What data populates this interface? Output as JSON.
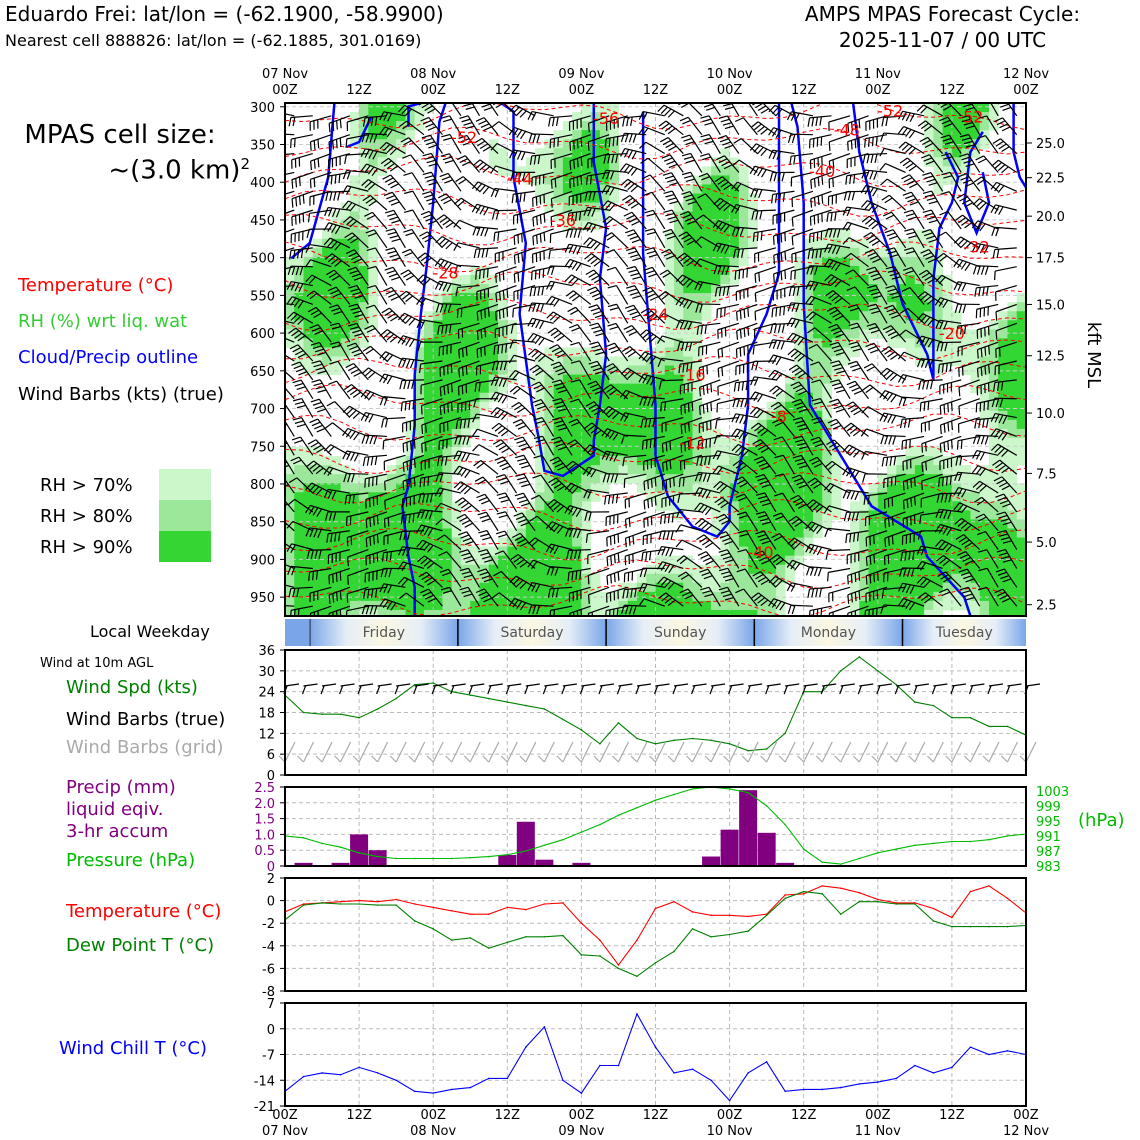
{
  "header": {
    "station_title": "Eduardo Frei: lat/lon = (-62.1900, -58.9900)",
    "nearest_cell": "Nearest cell 888826: lat/lon = (-62.1885, 301.0169)",
    "cycle_title": "AMPS MPAS Forecast Cycle:",
    "cycle_time": "2025-11-07 / 00 UTC"
  },
  "left_panel": {
    "cell_size_label": "MPAS cell size:",
    "cell_size_value": "~(3.0 km)",
    "cell_size_exp": "2",
    "legend_temperature": "Temperature (°C)",
    "legend_rh": "RH (%) wrt liq. wat",
    "legend_cloud": "Cloud/Precip outline",
    "legend_wind": "Wind Barbs (kts) (true)",
    "rh_levels": [
      {
        "label": "RH > 70%",
        "color": "#cbf7cb"
      },
      {
        "label": "RH > 80%",
        "color": "#9be89b"
      },
      {
        "label": "RH > 90%",
        "color": "#33d633"
      }
    ],
    "local_weekday": "Local Weekday",
    "wind10m_label": "Wind at 10m AGL",
    "wind_spd_label": "Wind Spd (kts)",
    "wind_barbs_true": "Wind Barbs (true)",
    "wind_barbs_grid": "Wind Barbs (grid)",
    "precip_label_1": "Precip (mm)",
    "precip_label_2": "liquid eqiv.",
    "precip_label_3": "3-hr accum",
    "pressure_label": "Pressure (hPa)",
    "temp_label": "Temperature (°C)",
    "dewpoint_label": "Dew Point T (°C)",
    "windchill_label": "Wind Chill T (°C)"
  },
  "colors": {
    "temperature": "#ff0000",
    "rh_text": "#33cc33",
    "cloud": "#0000ff",
    "wind_spd": "#008000",
    "precip": "#800080",
    "pressure": "#00bb00",
    "dewpoint": "#008000",
    "windchill": "#0000ff",
    "grid_barb": "#aaaaaa"
  },
  "time_axis": {
    "top_date_labels": [
      "07 Nov",
      "08 Nov",
      "09 Nov",
      "10 Nov",
      "11 Nov",
      "12 Nov"
    ],
    "hour_labels": [
      "00Z",
      "12Z",
      "00Z",
      "12Z",
      "00Z",
      "12Z",
      "00Z",
      "12Z",
      "00Z",
      "12Z",
      "00Z"
    ],
    "bottom_date_labels": [
      "07 Nov",
      "08 Nov",
      "09 Nov",
      "10 Nov",
      "11 Nov",
      "12 Nov"
    ]
  },
  "weekdays": [
    "Friday",
    "Saturday",
    "Sunday",
    "Monday",
    "Tuesday"
  ],
  "chart_data": [
    {
      "type": "heatmap",
      "title": "Time-height cross section",
      "ylabel_right": "kft MSL",
      "pressure_ticks": [
        300,
        350,
        400,
        450,
        500,
        550,
        600,
        650,
        700,
        750,
        800,
        850,
        900,
        950
      ],
      "height_ticks": [
        "25.0",
        "22.5",
        "20.0",
        "17.5",
        "15.0",
        "12.5",
        "10.0",
        "7.5",
        "5.0",
        "2.5"
      ],
      "ylim": [
        975,
        295
      ],
      "xlim_hours": [
        0,
        120
      ],
      "temperature_labels": [
        {
          "text": "-56",
          "hour": 52,
          "p": 315
        },
        {
          "text": "-52",
          "hour": 29,
          "p": 340
        },
        {
          "text": "-52",
          "hour": 98,
          "p": 305
        },
        {
          "text": "-52",
          "hour": 111,
          "p": 313
        },
        {
          "text": "-48",
          "hour": 91,
          "p": 330
        },
        {
          "text": "-44",
          "hour": 38,
          "p": 395
        },
        {
          "text": "-40",
          "hour": 87,
          "p": 385
        },
        {
          "text": "-36",
          "hour": 45,
          "p": 450
        },
        {
          "text": "-32",
          "hour": 112,
          "p": 485
        },
        {
          "text": "-28",
          "hour": 26,
          "p": 520
        },
        {
          "text": "-24",
          "hour": 60,
          "p": 575
        },
        {
          "text": "-20",
          "hour": 108,
          "p": 600
        },
        {
          "text": "-16",
          "hour": 66,
          "p": 655
        },
        {
          "text": "-8",
          "hour": 80,
          "p": 710
        },
        {
          "text": "-12",
          "hour": 66,
          "p": 745
        },
        {
          "text": "-40",
          "hour": 77,
          "p": 890
        }
      ]
    },
    {
      "type": "line",
      "title": "Wind at 10m AGL",
      "ylabel": "Wind Spd (kts)",
      "yticks": [
        0,
        6,
        12,
        18,
        24,
        30,
        36
      ],
      "ylim": [
        0,
        36
      ],
      "x_hours": [
        0,
        3,
        6,
        9,
        12,
        15,
        18,
        21,
        24,
        27,
        30,
        33,
        36,
        39,
        42,
        45,
        48,
        51,
        54,
        57,
        60,
        63,
        66,
        69,
        72,
        75,
        78,
        81,
        84,
        87,
        90,
        93,
        96,
        99,
        102,
        105,
        108,
        111,
        114,
        117,
        120
      ],
      "series": [
        {
          "name": "Wind Spd (kts)",
          "values": [
            23,
            18,
            17.5,
            17.5,
            16.5,
            19,
            22,
            26,
            26.5,
            24,
            23,
            22,
            21,
            20,
            19,
            16,
            13,
            9,
            15,
            10.5,
            9,
            10,
            10.5,
            10,
            9,
            7,
            7.5,
            12,
            24,
            24,
            30,
            34,
            30,
            26,
            21,
            20,
            16.5,
            16.5,
            14,
            14,
            11.5
          ]
        }
      ]
    },
    {
      "type": "bar",
      "title": "Precip (mm) and Pressure (hPa)",
      "ylabel": "Precip (mm)",
      "yticks": [
        0,
        0.5,
        1.0,
        1.5,
        2.0,
        2.5
      ],
      "ylim": [
        0,
        2.5
      ],
      "x_hours": [
        3,
        9,
        12,
        15,
        36,
        39,
        42,
        48,
        69,
        72,
        75,
        78,
        81
      ],
      "values": [
        0.1,
        0.1,
        1.0,
        0.5,
        0.35,
        1.4,
        0.2,
        0.1,
        0.3,
        1.15,
        2.4,
        1.05,
        0.1
      ],
      "y2label": "(hPa)",
      "y2ticks": [
        983,
        987,
        991,
        995,
        999,
        1003
      ],
      "y2lim": [
        983,
        1004
      ],
      "pressure_x_hours": [
        0,
        3,
        6,
        9,
        12,
        15,
        18,
        21,
        24,
        27,
        30,
        33,
        36,
        39,
        42,
        45,
        48,
        51,
        54,
        57,
        60,
        63,
        66,
        69,
        72,
        75,
        78,
        81,
        84,
        87,
        90,
        93,
        96,
        99,
        102,
        105,
        108,
        111,
        114,
        117,
        120
      ],
      "pressure_values": [
        991,
        990.5,
        989,
        988,
        986.5,
        985.5,
        985,
        985,
        985,
        985,
        985.2,
        985.5,
        986,
        987,
        988.5,
        990,
        992,
        994,
        996.5,
        998.5,
        1000.5,
        1002,
        1003.5,
        1004,
        1003.5,
        1002.5,
        999,
        994,
        987.5,
        984,
        983.5,
        985,
        986.5,
        987.5,
        988.5,
        989,
        989.5,
        989.5,
        990,
        991,
        991.5
      ]
    },
    {
      "type": "line",
      "title": "Temperature and Dew Point",
      "ylabel": "Temperature (°C)",
      "yticks": [
        -8,
        -6,
        -4,
        -2,
        0,
        2
      ],
      "ylim": [
        -8,
        2
      ],
      "x_hours": [
        0,
        3,
        6,
        9,
        12,
        15,
        18,
        21,
        24,
        27,
        30,
        33,
        36,
        39,
        42,
        45,
        48,
        51,
        54,
        57,
        60,
        63,
        66,
        69,
        72,
        75,
        78,
        81,
        84,
        87,
        90,
        93,
        96,
        99,
        102,
        105,
        108,
        111,
        114,
        117,
        120
      ],
      "series": [
        {
          "name": "Temperature (°C)",
          "values": [
            -1,
            -0.3,
            -0.2,
            -0.1,
            0,
            -0.1,
            0.1,
            -0.3,
            -0.6,
            -0.9,
            -1.2,
            -1.2,
            -0.6,
            -0.8,
            -0.3,
            -0.2,
            -2,
            -3.5,
            -5.7,
            -3.5,
            -0.7,
            -0.1,
            -1,
            -1.3,
            -1.3,
            -1.4,
            -1.2,
            0.5,
            0.6,
            1.3,
            1.1,
            0.7,
            0.1,
            -0.2,
            -0.2,
            -0.7,
            -1.5,
            0.8,
            1.3,
            0.2,
            -1.1
          ]
        },
        {
          "name": "Dew Point T (°C)",
          "values": [
            -1.7,
            -0.4,
            -0.2,
            -0.3,
            -0.3,
            -0.4,
            -0.4,
            -1.8,
            -2.5,
            -3.5,
            -3.3,
            -4.2,
            -3.7,
            -3.2,
            -3.2,
            -3.1,
            -4.8,
            -4.9,
            -6,
            -6.7,
            -5.5,
            -4.5,
            -2.5,
            -3.2,
            -3,
            -2.7,
            -1.3,
            0.2,
            0.8,
            0.6,
            -1.2,
            -0.1,
            -0.1,
            -0.3,
            -0.3,
            -1.8,
            -2.3,
            -2.3,
            -2.3,
            -2.3,
            -2.2
          ]
        }
      ]
    },
    {
      "type": "line",
      "title": "Wind Chill",
      "ylabel": "Wind Chill T (°C)",
      "yticks": [
        -21,
        -14,
        -7,
        0,
        7
      ],
      "ylim": [
        -21,
        7
      ],
      "x_hours": [
        0,
        3,
        6,
        9,
        12,
        15,
        18,
        21,
        24,
        27,
        30,
        33,
        36,
        39,
        42,
        45,
        48,
        51,
        54,
        57,
        60,
        63,
        66,
        69,
        72,
        75,
        78,
        81,
        84,
        87,
        90,
        93,
        96,
        99,
        102,
        105,
        108,
        111,
        114,
        117,
        120
      ],
      "series": [
        {
          "name": "Wind Chill T (°C)",
          "values": [
            -17,
            -13,
            -12,
            -12.5,
            -10.5,
            -12,
            -14,
            -17,
            -17.5,
            -16.5,
            -16,
            -13.5,
            -13.5,
            -5,
            0.5,
            -14,
            -17.5,
            -10,
            -10,
            4,
            -5,
            -12,
            -11,
            -14,
            -19.5,
            -12,
            -9,
            -17,
            -16.5,
            -16.5,
            -16,
            -15,
            -14.5,
            -13.5,
            -10,
            -12,
            -10.5,
            -5,
            -7,
            -6,
            -7
          ]
        }
      ]
    }
  ]
}
